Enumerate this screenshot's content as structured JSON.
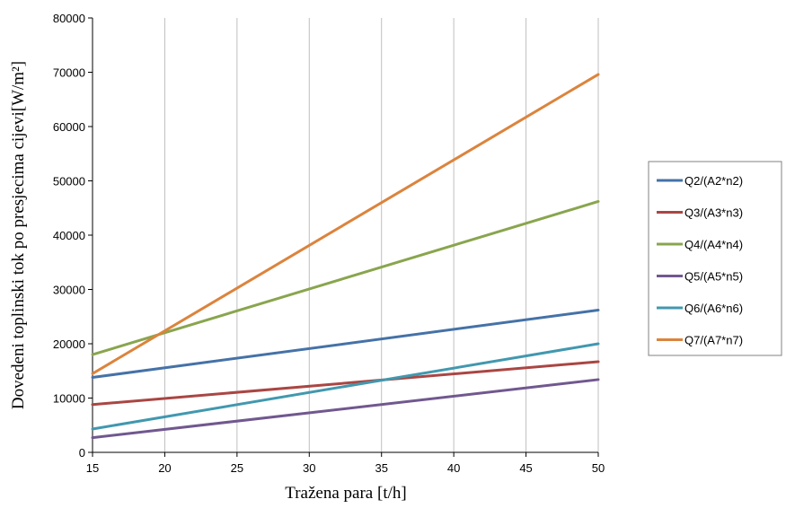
{
  "chart_data": {
    "type": "line",
    "xlabel": "Tražena para  [t/h]",
    "ylabel": "Dovedeni toplinski tok po presjecima cijevi[W/m²]",
    "xlim": [
      15,
      50
    ],
    "ylim": [
      0,
      80000
    ],
    "x_ticks": [
      15,
      20,
      25,
      30,
      35,
      40,
      45,
      50
    ],
    "y_ticks": [
      0,
      10000,
      20000,
      30000,
      40000,
      50000,
      60000,
      70000,
      80000
    ],
    "grid": "vertical",
    "legend_position": "right",
    "x": [
      15,
      50
    ],
    "series": [
      {
        "name": "Q2/(A2*n2)",
        "color": "#4572A7",
        "values": [
          13800,
          26200
        ]
      },
      {
        "name": "Q3/(A3*n3)",
        "color": "#AA4643",
        "values": [
          8800,
          16700
        ]
      },
      {
        "name": "Q4/(A4*n4)",
        "color": "#89A54E",
        "values": [
          18000,
          46200
        ]
      },
      {
        "name": "Q5/(A5*n5)",
        "color": "#71588F",
        "values": [
          2700,
          13400
        ]
      },
      {
        "name": "Q6/(A6*n6)",
        "color": "#4198AF",
        "values": [
          4300,
          20000
        ]
      },
      {
        "name": "Q7/(A7*n7)",
        "color": "#DB843D",
        "values": [
          14500,
          69600
        ]
      }
    ]
  }
}
